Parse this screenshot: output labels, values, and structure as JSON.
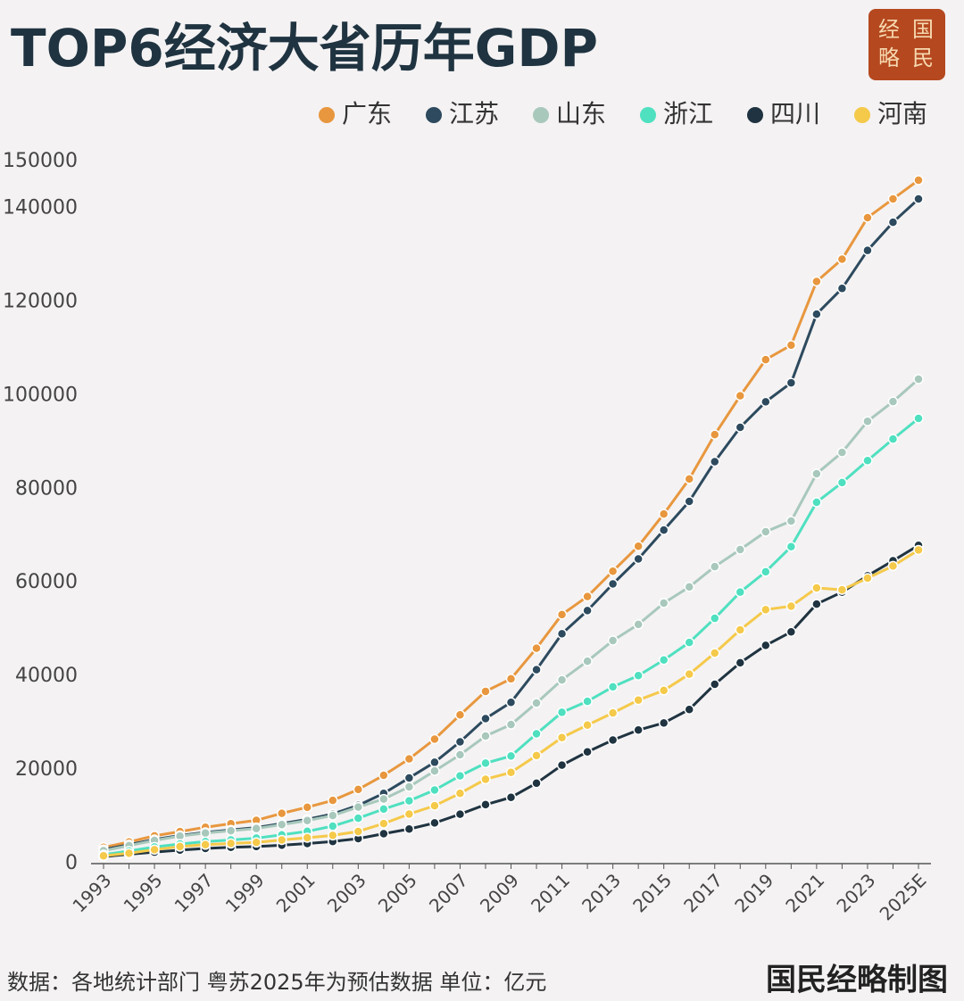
{
  "chart_data": {
    "type": "line",
    "title": "TOP6经济大省历年GDP",
    "logo": [
      "经",
      "国",
      "略",
      "民"
    ],
    "source": "数据：各地统计部门  粤苏2025年为预估数据 单位：亿元",
    "credit": "国民经略制图",
    "categories": [
      "1993",
      null,
      "1995",
      null,
      "1997",
      null,
      "1999",
      null,
      "2001",
      null,
      "2003",
      null,
      "2005",
      null,
      "2007",
      null,
      "2009",
      null,
      "2011",
      null,
      "2013",
      null,
      "2015",
      null,
      "2017",
      null,
      "2019",
      null,
      "2021",
      null,
      "2023",
      null,
      "2025E"
    ],
    "ylim": [
      0,
      150000
    ],
    "yticks": [
      0,
      20000,
      40000,
      60000,
      80000,
      100000,
      120000,
      140000,
      150000
    ],
    "grid": false,
    "legend": "top-right",
    "series": [
      {
        "name": "广东",
        "color": "#e8973e",
        "values": [
          3469,
          4619,
          5933,
          6835,
          7775,
          8531,
          9250,
          10741,
          12039,
          13502,
          15845,
          18865,
          22367,
          26588,
          31777,
          36797,
          39483,
          46013,
          53210,
          57068,
          62475,
          67810,
          74700,
          82163,
          91649,
          99945,
          107671,
          110761,
          124370,
          129119,
          138000,
          142000,
          146000
        ]
      },
      {
        "name": "江苏",
        "color": "#2d4a5e",
        "values": [
          2998,
          4057,
          5155,
          6004,
          6680,
          7200,
          7698,
          8554,
          9457,
          10607,
          12443,
          15004,
          18306,
          21645,
          26018,
          30982,
          34457,
          41425,
          49110,
          54058,
          59753,
          65088,
          71255,
          77388,
          85870,
          93208,
          98657,
          102719,
          117392,
          122876,
          131000,
          137008,
          142000
        ]
      },
      {
        "name": "山东",
        "color": "#a8c8bc",
        "values": [
          2770,
          3844,
          4953,
          5883,
          6537,
          7021,
          7493,
          8337,
          9195,
          10275,
          12078,
          13800,
          16400,
          19800,
          23250,
          27250,
          29700,
          34300,
          39250,
          43250,
          47650,
          51100,
          55650,
          59100,
          63450,
          67100,
          70900,
          73200,
          83300,
          87850,
          94500,
          98700,
          103500
        ]
      },
      {
        "name": "浙江",
        "color": "#4fe0c0",
        "values": [
          1925,
          2689,
          3558,
          4189,
          4686,
          5053,
          5444,
          6141,
          6898,
          8004,
          9705,
          11649,
          13418,
          15718,
          18754,
          21463,
          22990,
          27722,
          32319,
          34665,
          37757,
          40173,
          43508,
          47251,
          52403,
          58002,
          62352,
          67700,
          77200,
          81400,
          86100,
          90700,
          95100
        ]
      },
      {
        "name": "四川",
        "color": "#1f3340",
        "values": [
          1486,
          2001,
          2443,
          2872,
          3241,
          3474,
          3649,
          3928,
          4293,
          4725,
          5333,
          6380,
          7385,
          8690,
          10562,
          12601,
          14151,
          17185,
          21027,
          23873,
          26392,
          28537,
          30053,
          32935,
          38300,
          42902,
          46616,
          49500,
          55450,
          58000,
          61500,
          64697,
          68000
        ]
      },
      {
        "name": "河南",
        "color": "#f5c94a",
        "values": [
          1660,
          2217,
          2988,
          3635,
          4041,
          4308,
          4518,
          5053,
          5533,
          6035,
          6868,
          8554,
          10587,
          12363,
          15012,
          18019,
          19480,
          23092,
          26931,
          29599,
          32191,
          34938,
          37002,
          40472,
          44988,
          49936,
          54259,
          54997,
          58887,
          58500,
          61000,
          63590,
          67000
        ]
      }
    ]
  }
}
